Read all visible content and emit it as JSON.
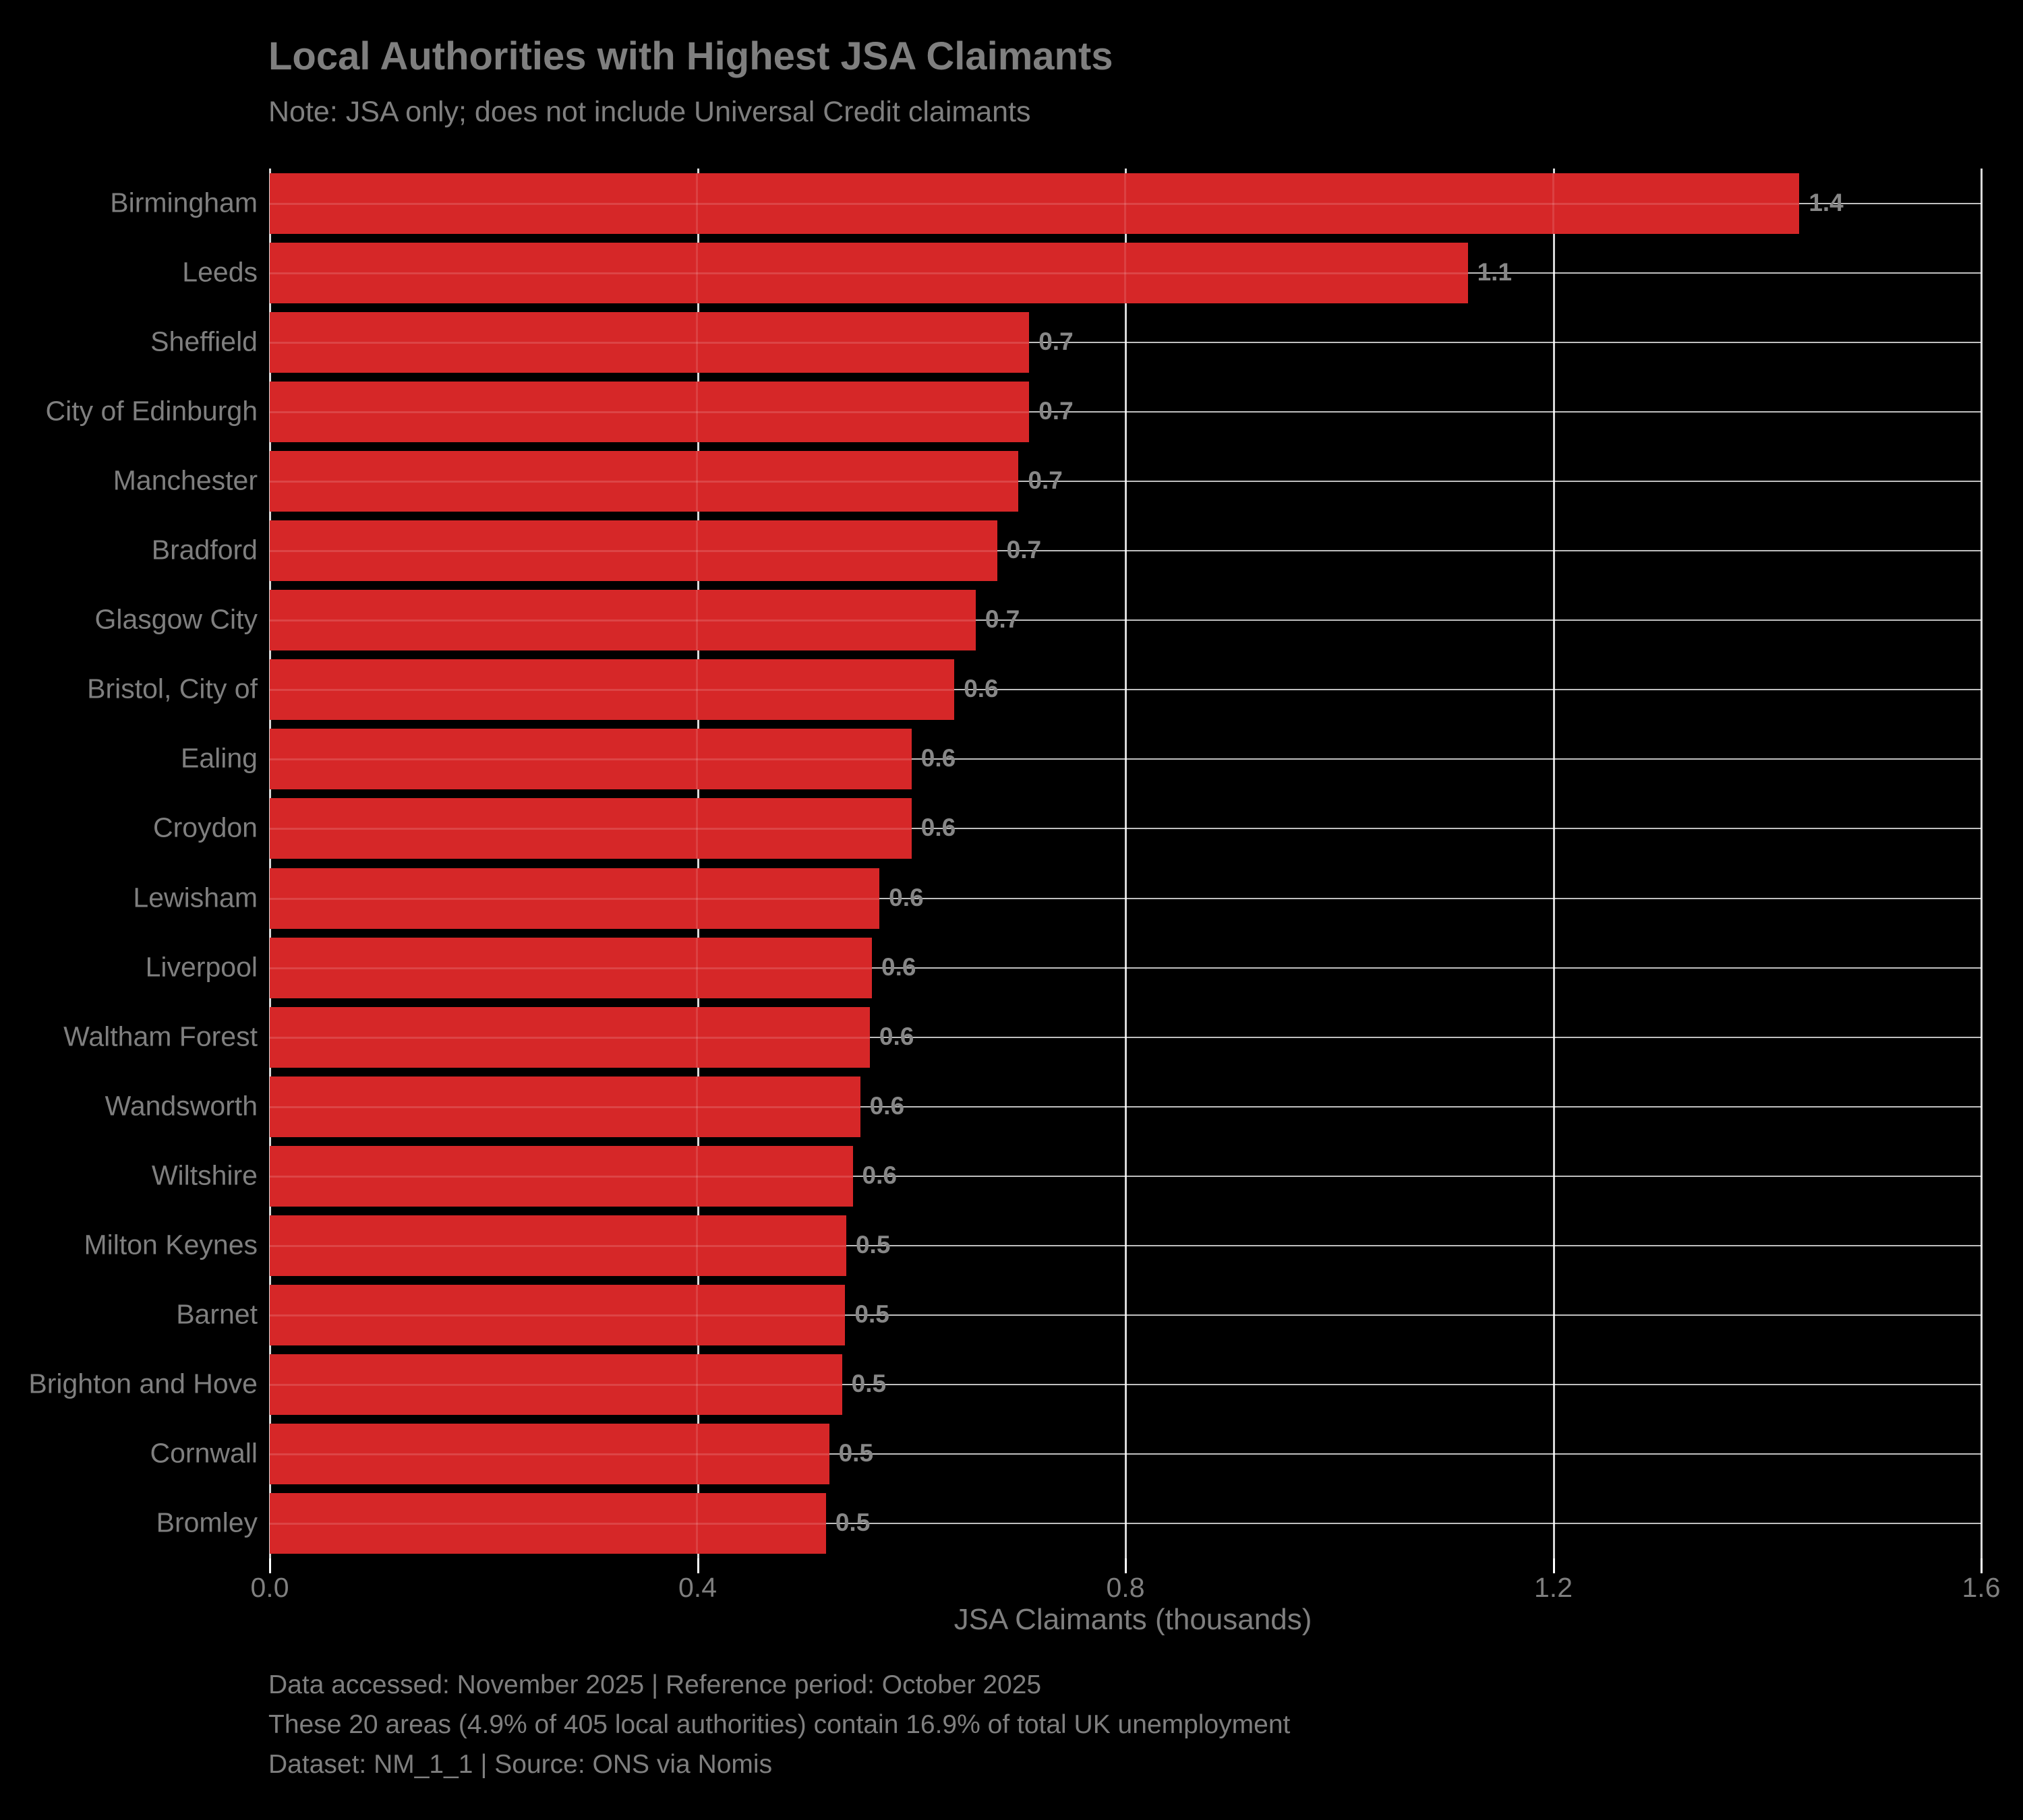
{
  "title": "Local Authorities with Highest JSA Claimants",
  "subtitle": "Note: JSA only; does not include Universal Credit claimants",
  "colors": {
    "background": "#000000",
    "bar": "#d62728",
    "text": "#7f7f7f",
    "gridline": "#ffffff"
  },
  "chart_data": {
    "type": "bar",
    "orientation": "horizontal",
    "title": "Local Authorities with Highest JSA Claimants",
    "subtitle": "Note: JSA only; does not include Universal Credit claimants",
    "xlabel": "JSA Claimants (thousands)",
    "ylabel": "",
    "xlim": [
      0,
      1.6
    ],
    "x_ticks": [
      "0.0",
      "0.4",
      "0.8",
      "1.2",
      "1.6"
    ],
    "grid": true,
    "legend": false,
    "bar_color": "#d62728",
    "categories": [
      "Birmingham",
      "Leeds",
      "Sheffield",
      "City of Edinburgh",
      "Manchester",
      "Bradford",
      "Glasgow City",
      "Bristol, City of",
      "Ealing",
      "Croydon",
      "Lewisham",
      "Liverpool",
      "Waltham Forest",
      "Wandsworth",
      "Wiltshire",
      "Milton Keynes",
      "Barnet",
      "Brighton and Hove",
      "Cornwall",
      "Bromley"
    ],
    "value_labels": [
      "1.4",
      "1.1",
      "0.7",
      "0.7",
      "0.7",
      "0.7",
      "0.7",
      "0.6",
      "0.6",
      "0.6",
      "0.6",
      "0.6",
      "0.6",
      "0.6",
      "0.6",
      "0.5",
      "0.5",
      "0.5",
      "0.5",
      "0.5"
    ],
    "values": [
      1.4,
      1.1,
      0.7,
      0.7,
      0.7,
      0.7,
      0.7,
      0.6,
      0.6,
      0.6,
      0.6,
      0.6,
      0.6,
      0.6,
      0.6,
      0.5,
      0.5,
      0.5,
      0.5,
      0.5
    ],
    "values_precise_est": [
      1.43,
      1.12,
      0.71,
      0.71,
      0.7,
      0.68,
      0.66,
      0.64,
      0.6,
      0.6,
      0.57,
      0.563,
      0.561,
      0.552,
      0.545,
      0.539,
      0.538,
      0.535,
      0.523,
      0.52
    ]
  },
  "footer": {
    "line1": "Data accessed: November 2025 | Reference period: October 2025",
    "line2": "These 20 areas (4.9% of 405 local authorities) contain 16.9% of total UK unemployment",
    "line3": "Dataset: NM_1_1 | Source: ONS via Nomis"
  }
}
